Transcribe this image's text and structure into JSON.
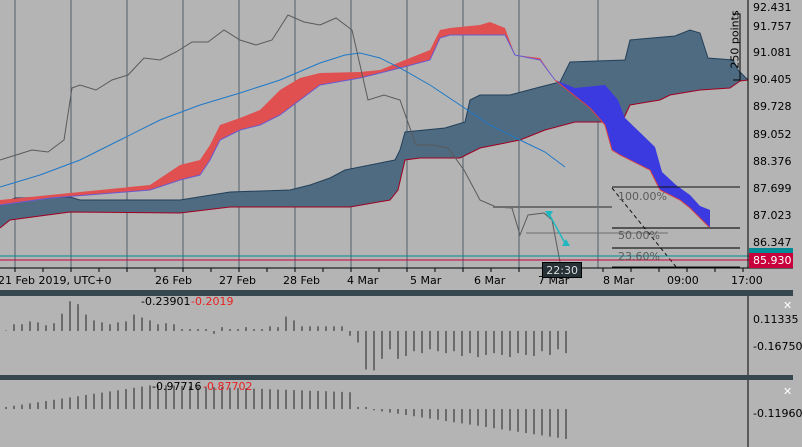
{
  "price_axis": {
    "labels": [
      "92.431",
      "91.757",
      "91.081",
      "90.405",
      "89.728",
      "89.052",
      "88.376",
      "87.699",
      "87.023",
      "86.347"
    ],
    "bid_label": "85.930",
    "scale_label": "250 points"
  },
  "time_axis": {
    "labels": [
      "21 Feb 2019, UTC+0",
      "26 Feb",
      "27 Feb",
      "28 Feb",
      "4 Mar",
      "5 Mar",
      "6 Mar",
      "7 Mar",
      "8 Mar",
      "09:00",
      "17:00"
    ],
    "crosshair_time": "22:30"
  },
  "fibonacci": {
    "levels": [
      "100.00%",
      "50.00%",
      "23.60%"
    ]
  },
  "indicator1": {
    "value_a": "-0.23901",
    "value_b": "-0.2019",
    "axis_labels": [
      "0.11335",
      "-0.16750"
    ],
    "histogram": [
      0.005,
      0.07,
      0.07,
      0.1,
      0.09,
      0.06,
      0.08,
      0.18,
      0.31,
      0.28,
      0.17,
      0.11,
      0.09,
      0.07,
      0.09,
      0.1,
      0.17,
      0.14,
      0.11,
      0.07,
      0.08,
      0.07,
      0.02,
      0.02,
      0.02,
      0.02,
      -0.03,
      0.04,
      0.02,
      0.02,
      0.04,
      0.02,
      0.02,
      0.05,
      0.04,
      0.15,
      0.11,
      0.05,
      0.05,
      0.05,
      0.05,
      0.05,
      0.05,
      -0.05,
      -0.12,
      -0.4,
      -0.41,
      -0.29,
      -0.19,
      -0.29,
      -0.26,
      -0.21,
      -0.23,
      -0.19,
      -0.21,
      -0.23,
      -0.21,
      -0.26,
      -0.23,
      -0.27,
      -0.25,
      -0.23,
      -0.25,
      -0.27,
      -0.23,
      -0.25,
      -0.26,
      -0.21,
      -0.25,
      -0.19,
      -0.23
    ]
  },
  "indicator2": {
    "value_a": "-0.97716",
    "value_b": "-0.87702",
    "axis_labels": [
      "-0.11960"
    ]
  },
  "colors": {
    "background": "#b4b4b4",
    "cloud_bear": "#4f6b82",
    "cloud_bull": "#e05050",
    "cloud_blue": "#3a3ae0",
    "ma_line": "#1f78c8",
    "bid_line": "#c8003c",
    "ask_line": "#008c96",
    "separator": "#37474f"
  }
}
